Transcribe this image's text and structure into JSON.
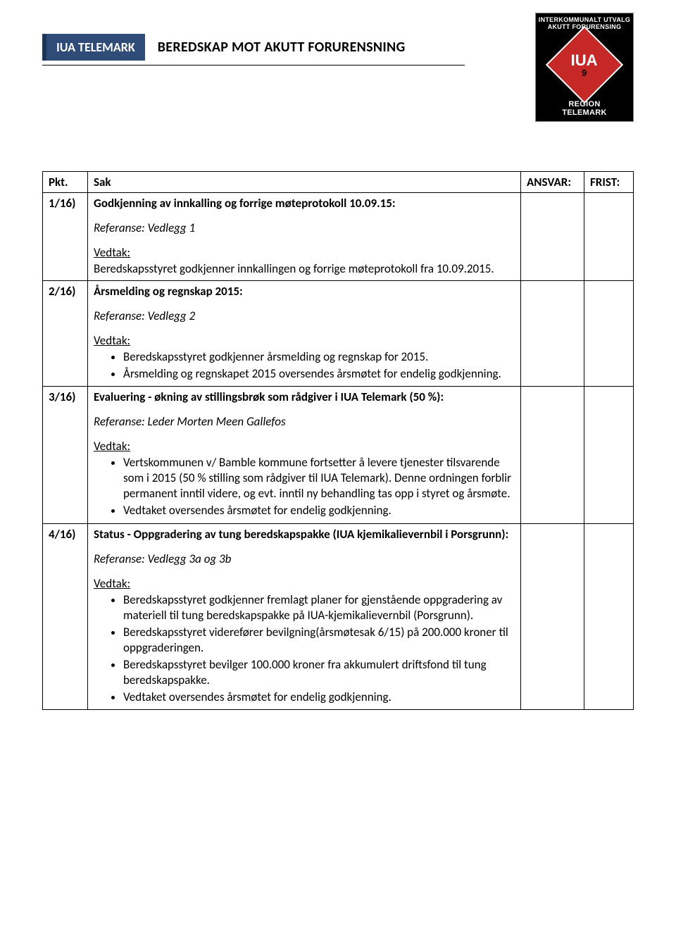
{
  "header": {
    "badge": "IUA TELEMARK",
    "title": "BEREDSKAP MOT AKUTT FORURENSNING",
    "logo_top": "INTERKOMMUNALT UTVALG AKUTT FORURENSING",
    "logo_iua": "IUA",
    "logo_num": "9",
    "logo_bottom1": "REGION",
    "logo_bottom2": "TELEMARK"
  },
  "columns": {
    "pkt": "Pkt.",
    "sak": "Sak",
    "ansvar": "ANSVAR:",
    "frist": "FRIST:"
  },
  "rows": [
    {
      "pkt": "1/16)",
      "title": "Godkjenning av innkalling og forrige møteprotokoll 10.09.15:",
      "ref": "Referanse: Vedlegg 1",
      "vedtak_label": "Vedtak:",
      "vedtak_text": "Beredskapsstyret godkjenner innkallingen og forrige møteprotokoll fra 10.09.2015."
    },
    {
      "pkt": "2/16)",
      "title": "Årsmelding og regnskap 2015:",
      "ref": "Referanse: Vedlegg 2",
      "vedtak_label": "Vedtak:",
      "bullets": [
        "Beredskapsstyret godkjenner årsmelding og regnskap for 2015.",
        "Årsmelding og regnskapet 2015 oversendes årsmøtet for endelig godkjenning."
      ]
    },
    {
      "pkt": "3/16)",
      "title": "Evaluering - økning av stillingsbrøk som rådgiver i IUA Telemark (50 %):",
      "ref": "Referanse: Leder Morten Meen Gallefos",
      "vedtak_label": "Vedtak:",
      "bullets": [
        "Vertskommunen v/ Bamble kommune fortsetter å levere tjenester tilsvarende som i 2015 (50 % stilling som rådgiver til IUA Telemark). Denne ordningen forblir permanent inntil videre, og evt. inntil ny behandling tas opp i styret og årsmøte.",
        "Vedtaket oversendes årsmøtet for endelig godkjenning."
      ]
    },
    {
      "pkt": "4/16)",
      "title": "Status - Oppgradering av tung beredskapspakke (IUA kjemikalievernbil i Porsgrunn):",
      "ref": "Referanse: Vedlegg 3a og 3b",
      "vedtak_label": "Vedtak:",
      "bullets": [
        "Beredskapsstyret godkjenner fremlagt planer for gjenstående oppgradering av materiell til tung beredskapspakke på IUA-kjemikalievernbil (Porsgrunn).",
        "Beredskapsstyret viderefører bevilgning(årsmøtesak 6/15) på 200.000 kroner til oppgraderingen.",
        "Beredskapsstyret bevilger 100.000 kroner fra akkumulert driftsfond til tung beredskapspakke.",
        "Vedtaket oversendes årsmøtet for endelig godkjenning."
      ]
    }
  ]
}
